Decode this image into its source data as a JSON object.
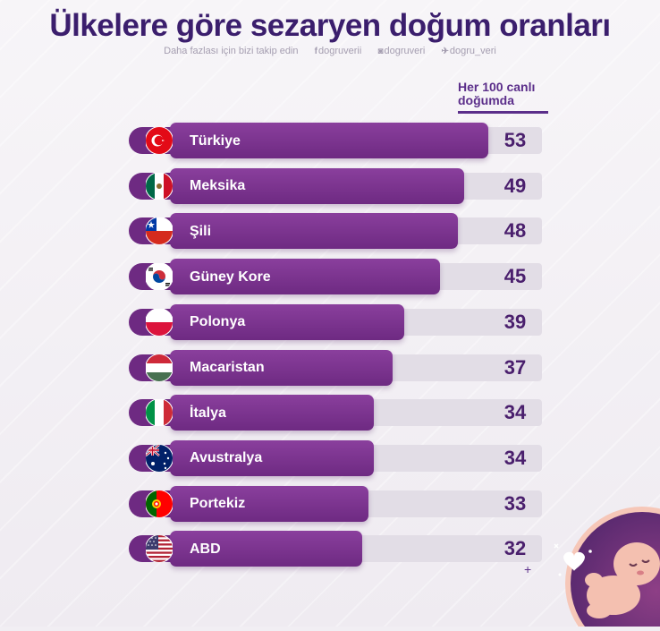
{
  "title": "Ülkelere göre sezaryen doğum oranları",
  "socials": {
    "prompt": "Daha fazlası için bizi takip edin",
    "facebook": "dogruverii",
    "instagram": "dogruveri",
    "twitter": "dogru_veri",
    "facebook_icon": "facebook-icon",
    "instagram_icon": "instagram-icon",
    "twitter_icon": "twitter-icon"
  },
  "unit_label": "Her 100 canlı doğumda",
  "colors": {
    "title": "#3b1e6d",
    "bar": "#7b3290",
    "track": "#e2dde6",
    "value": "#4a1f6d"
  },
  "decor": {
    "plus": "+",
    "baby_illustration": "baby-illustration"
  },
  "chart_data": {
    "type": "bar",
    "orientation": "horizontal",
    "title": "Ülkelere göre sezaryen doğum oranları",
    "unit": "Her 100 canlı doğumda",
    "categories": [
      "Türkiye",
      "Meksika",
      "Şili",
      "Güney Kore",
      "Polonya",
      "Macaristan",
      "İtalya",
      "Avustralya",
      "Portekiz",
      "ABD"
    ],
    "values": [
      53,
      49,
      48,
      45,
      39,
      37,
      34,
      34,
      33,
      32
    ],
    "flags": [
      "flag-turkiye-icon",
      "flag-meksika-icon",
      "flag-sili-icon",
      "flag-guney-kore-icon",
      "flag-polonya-icon",
      "flag-macaristan-icon",
      "flag-italya-icon",
      "flag-avustralya-icon",
      "flag-portekiz-icon",
      "flag-abd-icon"
    ],
    "xlim": [
      0,
      60
    ]
  }
}
